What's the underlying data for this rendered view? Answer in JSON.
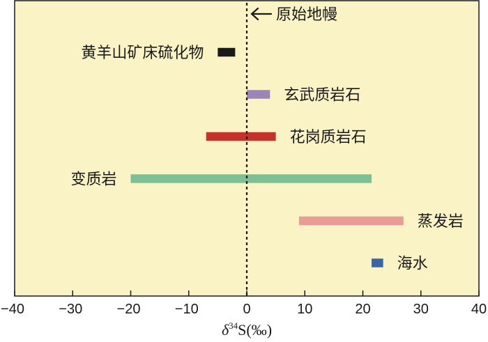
{
  "chart_data": {
    "type": "range-bar",
    "xlim": [
      -40,
      40
    ],
    "xticks": [
      -40,
      -30,
      -20,
      -10,
      0,
      10,
      20,
      30,
      40
    ],
    "xtick_labels": [
      "−40",
      "−30",
      "−20",
      "−10",
      "0",
      "10",
      "20",
      "30",
      "40"
    ],
    "xlabel": {
      "prefix": "δ",
      "sup": "34",
      "suffix": "S(‰)"
    },
    "background": "#f9f3c6",
    "reference_line": {
      "x": 0,
      "style": "dotted",
      "label": "原始地幔"
    },
    "ranges": [
      {
        "name": "黄羊山矿床硫化物",
        "min": -5,
        "max": -2,
        "color": "#1a1a1a",
        "label_side": "left"
      },
      {
        "name": "玄武质岩石",
        "min": 0,
        "max": 4,
        "color": "#9a86b8",
        "label_side": "right"
      },
      {
        "name": "花岗质岩石",
        "min": -7,
        "max": 5,
        "color": "#c8302a",
        "label_side": "right"
      },
      {
        "name": "变质岩",
        "min": -20,
        "max": 21.5,
        "color": "#7fbf96",
        "label_side": "left"
      },
      {
        "name": "蒸发岩",
        "min": 9,
        "max": 27,
        "color": "#eb9b98",
        "label_side": "right"
      },
      {
        "name": "海水",
        "min": 21.5,
        "max": 23.5,
        "color": "#3a66a8",
        "label_side": "right"
      }
    ]
  }
}
